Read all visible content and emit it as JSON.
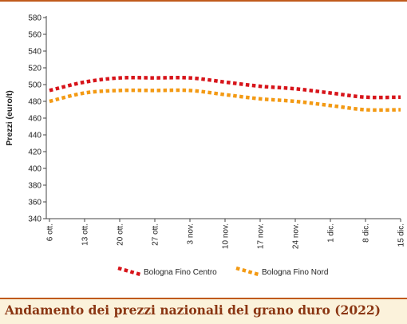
{
  "chart_data": {
    "type": "line",
    "title": "Andamento dei prezzi nazionali del grano duro (2022)",
    "ylabel": "Prezzi (euro/t)",
    "xlabel": "",
    "categories": [
      "6 ott.",
      "13 ott.",
      "20 ott.",
      "27 ott.",
      "3 nov.",
      "10 nov.",
      "17 nov.",
      "24 nov.",
      "1 dic.",
      "8 dic.",
      "15 dic."
    ],
    "ylim": [
      340,
      580
    ],
    "yticks": [
      340,
      360,
      380,
      400,
      420,
      440,
      460,
      480,
      500,
      520,
      540,
      560,
      580
    ],
    "ytick_labels": [
      "340",
      "360",
      "380",
      "400",
      "420",
      "440",
      "460",
      "480",
      "500",
      "520",
      "540",
      "560",
      "580"
    ],
    "grid": false,
    "legend_position": "bottom",
    "series": [
      {
        "name": "Bologna Fino Centro",
        "color": "#d7141a",
        "values": [
          493,
          503,
          508,
          508,
          508,
          503,
          498,
          495,
          490,
          485,
          485
        ]
      },
      {
        "name": "Bologna Fino Nord",
        "color": "#f39a14",
        "values": [
          480,
          490,
          493,
          493,
          493,
          488,
          483,
          480,
          475,
          470,
          470
        ]
      }
    ]
  }
}
